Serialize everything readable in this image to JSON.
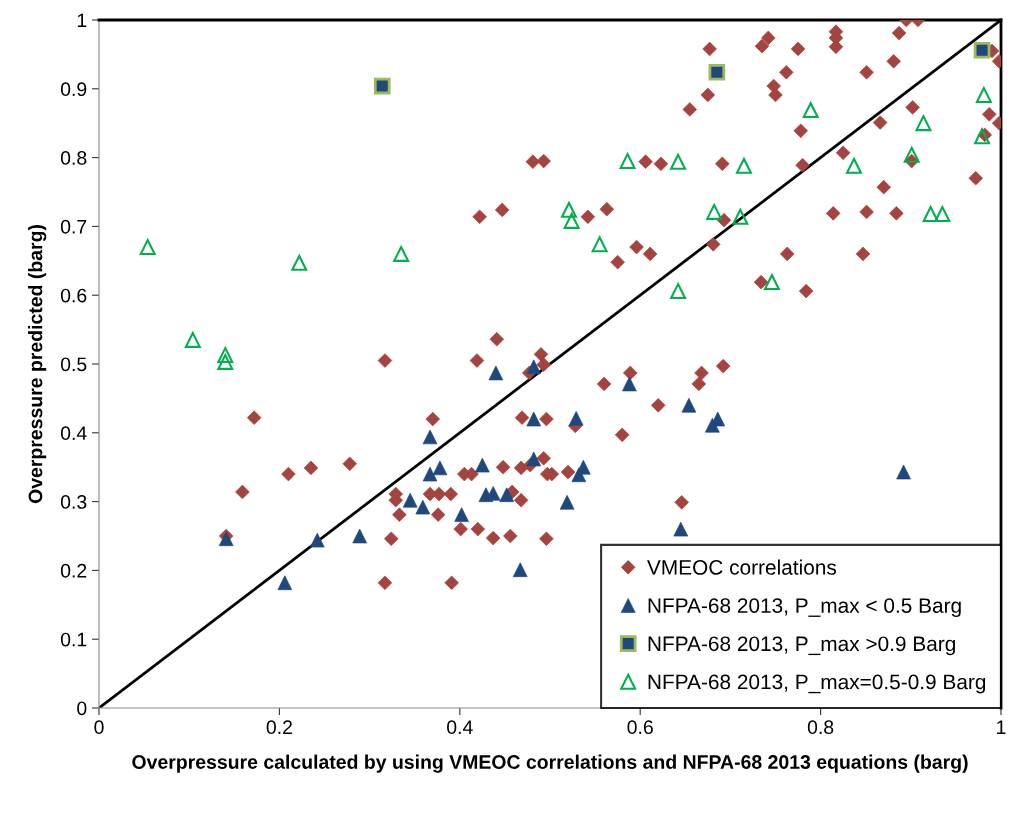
{
  "chart_data": {
    "type": "scatter",
    "xlabel": "Overpressure calculated by using VMEOC correlations and NFPA-68 2013 equations (barg)",
    "ylabel": "Overpressure predicted (barg)",
    "xlim": [
      0,
      1
    ],
    "ylim": [
      0,
      1
    ],
    "xticks": [
      0,
      0.2,
      0.4,
      0.6,
      0.8,
      1
    ],
    "yticks": [
      0,
      0.1,
      0.2,
      0.3,
      0.4,
      0.5,
      0.6,
      0.7,
      0.8,
      0.9,
      1
    ],
    "grid": false,
    "legend": "bottom right",
    "series": [
      {
        "name": "VMEOC correlations",
        "color": "#a5443f",
        "marker": "diamond",
        "x": [
          0.317,
          0.419,
          0.477,
          0.493,
          0.172,
          0.37,
          0.469,
          0.496,
          0.21,
          0.235,
          0.278,
          0.159,
          0.405,
          0.413,
          0.448,
          0.468,
          0.478,
          0.493,
          0.497,
          0.329,
          0.329,
          0.367,
          0.377,
          0.39,
          0.333,
          0.376,
          0.458,
          0.468,
          0.401,
          0.42,
          0.437,
          0.456,
          0.496,
          0.141,
          0.324,
          0.317,
          0.391,
          0.589,
          0.56,
          0.668,
          0.665,
          0.692,
          0.62,
          0.528,
          0.58,
          0.502,
          0.52,
          0.646,
          0.895,
          0.908,
          0.887,
          0.817,
          0.817,
          0.817,
          0.742,
          0.735,
          0.677,
          0.775,
          0.99,
          0.998,
          0.762,
          0.748,
          0.75,
          0.851,
          0.881,
          0.675,
          0.655,
          0.778,
          0.902,
          0.866,
          0.987,
          0.998,
          0.982,
          0.901,
          0.825,
          0.78,
          0.972,
          0.87,
          0.606,
          0.623,
          0.691,
          0.481,
          0.493,
          0.542,
          0.563,
          0.596,
          0.611,
          0.575,
          0.693,
          0.681,
          0.814,
          0.851,
          0.884,
          0.763,
          0.847,
          0.734,
          0.784,
          0.422,
          0.447,
          0.441,
          0.49
        ],
        "values": [
          0.505,
          0.505,
          0.487,
          0.499,
          0.422,
          0.42,
          0.422,
          0.42,
          0.34,
          0.349,
          0.355,
          0.314,
          0.34,
          0.34,
          0.35,
          0.349,
          0.353,
          0.363,
          0.34,
          0.311,
          0.302,
          0.311,
          0.311,
          0.311,
          0.281,
          0.281,
          0.314,
          0.302,
          0.26,
          0.26,
          0.247,
          0.25,
          0.246,
          0.25,
          0.246,
          0.182,
          0.182,
          0.487,
          0.471,
          0.487,
          0.471,
          0.497,
          0.44,
          0.41,
          0.397,
          0.34,
          0.343,
          0.299,
          1.0,
          1.0,
          0.981,
          0.983,
          0.974,
          0.961,
          0.974,
          0.962,
          0.958,
          0.958,
          0.955,
          0.94,
          0.924,
          0.904,
          0.891,
          0.924,
          0.94,
          0.891,
          0.87,
          0.839,
          0.873,
          0.851,
          0.863,
          0.85,
          0.833,
          0.795,
          0.807,
          0.789,
          0.77,
          0.757,
          0.794,
          0.791,
          0.791,
          0.794,
          0.795,
          0.714,
          0.725,
          0.67,
          0.66,
          0.648,
          0.709,
          0.674,
          0.719,
          0.721,
          0.719,
          0.66,
          0.66,
          0.619,
          0.606,
          0.714,
          0.724,
          0.536,
          0.514
        ]
      },
      {
        "name": "NFPA-68 2013, P_max < 0.5 Barg",
        "color": "#1f497d",
        "marker": "triangle",
        "x": [
          0.44,
          0.482,
          0.367,
          0.482,
          0.367,
          0.378,
          0.425,
          0.482,
          0.345,
          0.359,
          0.402,
          0.429,
          0.437,
          0.452,
          0.141,
          0.242,
          0.289,
          0.206,
          0.467,
          0.588,
          0.654,
          0.529,
          0.686,
          0.68,
          0.537,
          0.532,
          0.519,
          0.892,
          0.645
        ],
        "values": [
          0.487,
          0.496,
          0.394,
          0.42,
          0.34,
          0.349,
          0.353,
          0.362,
          0.302,
          0.292,
          0.281,
          0.31,
          0.312,
          0.31,
          0.246,
          0.244,
          0.25,
          0.182,
          0.201,
          0.471,
          0.44,
          0.421,
          0.42,
          0.411,
          0.35,
          0.339,
          0.299,
          0.343,
          0.26
        ]
      },
      {
        "name": "NFPA-68 2013, P_max >0.9 Barg",
        "color": "#1f497d",
        "marker": "square",
        "x": [
          0.314,
          0.685,
          0.979
        ],
        "values": [
          0.904,
          0.924,
          0.956
        ]
      },
      {
        "name": "NFPA-68 2013, P_max=0.5-0.9 Barg",
        "color": "#00b050",
        "marker": "triangle",
        "x": [
          0.054,
          0.222,
          0.335,
          0.104,
          0.14,
          0.14,
          0.789,
          0.914,
          0.981,
          0.979,
          0.901,
          0.837,
          0.586,
          0.642,
          0.715,
          0.521,
          0.524,
          0.555,
          0.682,
          0.711,
          0.922,
          0.935,
          0.746,
          0.642
        ],
        "values": [
          0.67,
          0.647,
          0.66,
          0.535,
          0.513,
          0.503,
          0.869,
          0.85,
          0.891,
          0.831,
          0.804,
          0.788,
          0.795,
          0.794,
          0.788,
          0.724,
          0.708,
          0.674,
          0.721,
          0.714,
          0.718,
          0.718,
          0.619,
          0.606
        ]
      },
      {
        "type": "line",
        "color": "#000000",
        "x": [
          0,
          1
        ],
        "values": [
          0,
          1
        ]
      }
    ]
  }
}
